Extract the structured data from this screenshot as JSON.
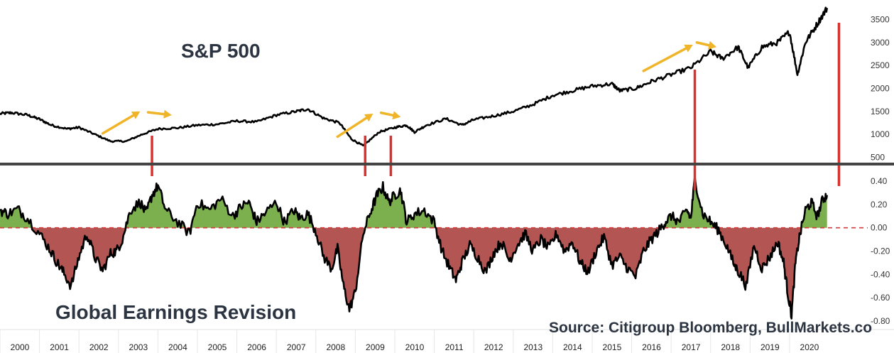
{
  "header": {
    "top_title": "S&P 500",
    "bottom_title": "Global Earnings Revision",
    "source": "Source: Citigroup Bloomberg, BullMarkets.co"
  },
  "colors": {
    "line": "#000000",
    "positive_fill": "#7cb04e",
    "negative_fill": "#b25553",
    "zero_line": "#d33b3b",
    "marker": "#d9332f",
    "arrow": "#f0b428",
    "divider": "#444444"
  },
  "chart_data": [
    {
      "type": "line",
      "title": "S&P 500",
      "x": [
        2000.0,
        2000.3,
        2000.7,
        2001.0,
        2001.3,
        2001.7,
        2002.0,
        2002.4,
        2002.8,
        2003.2,
        2003.6,
        2004.0,
        2004.5,
        2005.0,
        2005.5,
        2006.0,
        2006.5,
        2007.0,
        2007.5,
        2007.8,
        2008.2,
        2008.6,
        2008.9,
        2009.2,
        2009.6,
        2010.0,
        2010.3,
        2010.5,
        2010.8,
        2011.3,
        2011.7,
        2012.0,
        2012.5,
        2013.0,
        2013.5,
        2014.0,
        2014.5,
        2015.0,
        2015.5,
        2015.7,
        2016.1,
        2016.5,
        2017.0,
        2017.5,
        2018.0,
        2018.3,
        2018.7,
        2018.95,
        2019.3,
        2019.7,
        2020.0,
        2020.2,
        2020.4,
        2020.7,
        2020.95
      ],
      "values": [
        1450,
        1470,
        1420,
        1330,
        1200,
        1120,
        1150,
        1000,
        850,
        850,
        1000,
        1120,
        1140,
        1200,
        1220,
        1290,
        1270,
        1420,
        1500,
        1550,
        1350,
        1250,
        900,
        750,
        1050,
        1150,
        1200,
        1050,
        1200,
        1340,
        1200,
        1320,
        1400,
        1500,
        1650,
        1850,
        1950,
        2050,
        2100,
        1950,
        2000,
        2150,
        2300,
        2450,
        2800,
        2650,
        2900,
        2450,
        2900,
        3000,
        3230,
        2300,
        3000,
        3400,
        3750
      ],
      "ylim": [
        400,
        3800
      ],
      "yticks": [
        "500",
        "1000",
        "1500",
        "2000",
        "2500",
        "3000",
        "3500"
      ],
      "arrows": [
        {
          "x0": 2002.6,
          "y0": 1020,
          "x1": 2003.55,
          "y1": 1500
        },
        {
          "x0": 2003.75,
          "y0": 1480,
          "x1": 2004.35,
          "y1": 1420
        },
        {
          "x0": 2008.55,
          "y0": 950,
          "x1": 2009.45,
          "y1": 1450
        },
        {
          "x0": 2009.65,
          "y0": 1470,
          "x1": 2010.15,
          "y1": 1380
        },
        {
          "x0": 2016.3,
          "y0": 2380,
          "x1": 2017.55,
          "y1": 2950
        },
        {
          "x0": 2017.65,
          "y0": 3000,
          "x1": 2018.15,
          "y1": 2900
        }
      ]
    },
    {
      "type": "area",
      "title": "Global Earnings Revision",
      "x": [
        2000.0,
        2000.2,
        2000.45,
        2000.7,
        2001.0,
        2001.25,
        2001.45,
        2001.6,
        2001.8,
        2002.0,
        2002.2,
        2002.4,
        2002.6,
        2002.8,
        2002.95,
        2003.1,
        2003.3,
        2003.55,
        2003.7,
        2003.85,
        2004.0,
        2004.2,
        2004.5,
        2004.8,
        2005.0,
        2005.3,
        2005.6,
        2005.9,
        2006.1,
        2006.3,
        2006.5,
        2006.7,
        2007.0,
        2007.2,
        2007.45,
        2007.6,
        2007.8,
        2008.0,
        2008.2,
        2008.4,
        2008.55,
        2008.7,
        2008.85,
        2009.0,
        2009.2,
        2009.4,
        2009.55,
        2009.7,
        2009.85,
        2010.0,
        2010.15,
        2010.3,
        2010.5,
        2010.75,
        2011.0,
        2011.2,
        2011.4,
        2011.55,
        2011.7,
        2011.9,
        2012.1,
        2012.3,
        2012.5,
        2012.7,
        2012.9,
        2013.1,
        2013.3,
        2013.5,
        2013.7,
        2013.9,
        2014.1,
        2014.3,
        2014.5,
        2014.7,
        2014.9,
        2015.1,
        2015.3,
        2015.5,
        2015.7,
        2015.9,
        2016.1,
        2016.3,
        2016.5,
        2016.7,
        2016.85,
        2017.0,
        2017.2,
        2017.4,
        2017.5,
        2017.6,
        2017.8,
        2018.0,
        2018.2,
        2018.4,
        2018.6,
        2018.75,
        2018.9,
        2019.1,
        2019.3,
        2019.5,
        2019.7,
        2019.85,
        2019.95,
        2020.05,
        2020.15,
        2020.25,
        2020.4,
        2020.55,
        2020.7,
        2020.85,
        2020.95
      ],
      "values": [
        0.15,
        0.12,
        0.16,
        0.08,
        -0.05,
        -0.18,
        -0.3,
        -0.38,
        -0.5,
        -0.25,
        -0.05,
        -0.25,
        -0.37,
        -0.22,
        -0.2,
        -0.1,
        0.15,
        0.22,
        0.12,
        0.28,
        0.36,
        0.15,
        0.05,
        -0.05,
        0.22,
        0.15,
        0.25,
        0.1,
        0.18,
        0.22,
        0.05,
        0.12,
        0.22,
        0.05,
        0.15,
        0.08,
        0.12,
        -0.03,
        -0.25,
        -0.35,
        -0.18,
        -0.5,
        -0.7,
        -0.55,
        -0.05,
        0.15,
        0.28,
        0.35,
        0.22,
        0.28,
        0.32,
        0.05,
        0.12,
        0.15,
        0.05,
        -0.2,
        -0.35,
        -0.45,
        -0.3,
        -0.15,
        -0.25,
        -0.38,
        -0.22,
        -0.12,
        -0.28,
        -0.15,
        -0.05,
        -0.2,
        -0.1,
        -0.18,
        -0.05,
        -0.2,
        -0.12,
        -0.3,
        -0.38,
        -0.2,
        -0.08,
        -0.32,
        -0.25,
        -0.35,
        -0.42,
        -0.2,
        -0.1,
        -0.02,
        0.05,
        0.1,
        0.05,
        0.15,
        0.08,
        0.42,
        0.12,
        0.05,
        -0.02,
        -0.15,
        -0.32,
        -0.4,
        -0.5,
        -0.15,
        -0.35,
        -0.25,
        -0.12,
        -0.3,
        -0.55,
        -0.75,
        -0.3,
        -0.08,
        0.15,
        0.22,
        0.1,
        0.25,
        0.28
      ],
      "ylim": [
        -0.8,
        0.4
      ],
      "yticks": [
        "0.40",
        "0.20",
        "0.00",
        "-0.20",
        "-0.40",
        "-0.60",
        "-0.80"
      ],
      "markers": [
        {
          "x": 2003.85
        },
        {
          "x": 2009.25
        },
        {
          "x": 2009.9
        },
        {
          "x": 2017.6
        },
        {
          "x": 2021.25
        }
      ]
    }
  ],
  "x_axis": {
    "range": [
      2000,
      2021.8
    ],
    "labels": [
      "2000",
      "2001",
      "2002",
      "2003",
      "2004",
      "2005",
      "2006",
      "2007",
      "2008",
      "2009",
      "2010",
      "2011",
      "2012",
      "2013",
      "2014",
      "2015",
      "2016",
      "2017",
      "2018",
      "2019",
      "2020"
    ]
  }
}
